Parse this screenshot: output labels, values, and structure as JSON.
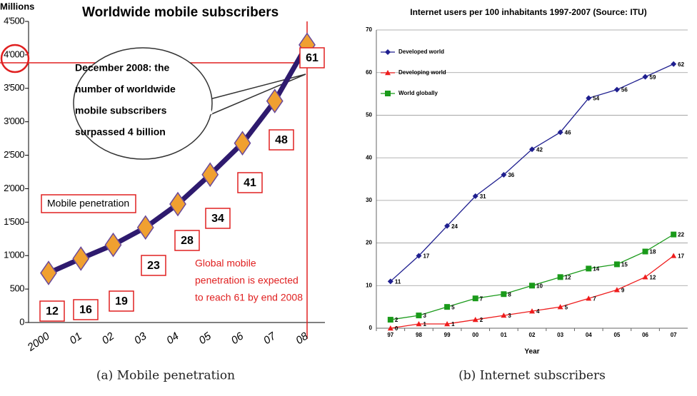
{
  "chart_data": [
    {
      "type": "line",
      "title": "Worldwide mobile subscribers",
      "y_label": "Millions",
      "categories": [
        "2000",
        "01",
        "02",
        "03",
        "04",
        "05",
        "06",
        "07",
        "08"
      ],
      "values": [
        740,
        955,
        1160,
        1420,
        1770,
        2210,
        2680,
        3310,
        4150
      ],
      "color": "#2e1a6e",
      "marker_color": "#f0a030",
      "penetration": [
        12,
        16,
        19,
        23,
        28,
        34,
        41,
        48,
        61
      ],
      "ylim": [
        0,
        4500
      ],
      "yticks": [
        0,
        500,
        {
          "value": 1000,
          "label": "1'000"
        },
        {
          "value": 1500,
          "label": "1'500"
        },
        {
          "value": 2000,
          "label": "2'000"
        },
        {
          "value": 2500,
          "label": "2'500"
        },
        {
          "value": 3000,
          "label": "3'000"
        },
        {
          "value": 3500,
          "label": "3'500"
        },
        {
          "value": 4000,
          "label": "4'000"
        },
        {
          "value": 4500,
          "label": "4'500"
        }
      ],
      "callout": [
        "December 2008: the",
        "number of worldwide",
        "mobile subscribers",
        "surpassed 4 billion"
      ],
      "legend_label": "Mobile penetration",
      "note": [
        "Global mobile",
        "penetration is expected",
        "to reach 61 by end 2008"
      ],
      "caption": "(a) Mobile penetration"
    },
    {
      "type": "line",
      "title": "Internet users per 100 inhabitants 1997-2007 (Source: ITU)",
      "x_label": "Year",
      "categories": [
        "97",
        "98",
        "99",
        "00",
        "01",
        "02",
        "03",
        "04",
        "05",
        "06",
        "07"
      ],
      "series": [
        {
          "name": "Developed world",
          "color": "#1f1f8f",
          "marker": "diamond",
          "values": [
            11,
            17,
            24,
            31,
            36,
            42,
            46,
            54,
            56,
            59,
            62
          ]
        },
        {
          "name": "Developing world",
          "color": "#ee1c1c",
          "marker": "triangle",
          "values": [
            0,
            1,
            1,
            2,
            3,
            4,
            5,
            7,
            9,
            12,
            17
          ]
        },
        {
          "name": "World globally",
          "color": "#1a9a1a",
          "marker": "square",
          "values": [
            2,
            3,
            5,
            7,
            8,
            10,
            12,
            14,
            15,
            18,
            22
          ]
        }
      ],
      "ylim": [
        0,
        70
      ],
      "yticks": [
        0,
        10,
        20,
        30,
        40,
        50,
        60,
        70
      ],
      "grid": true,
      "legend": "upper left",
      "caption": "(b) Internet subscribers"
    }
  ]
}
